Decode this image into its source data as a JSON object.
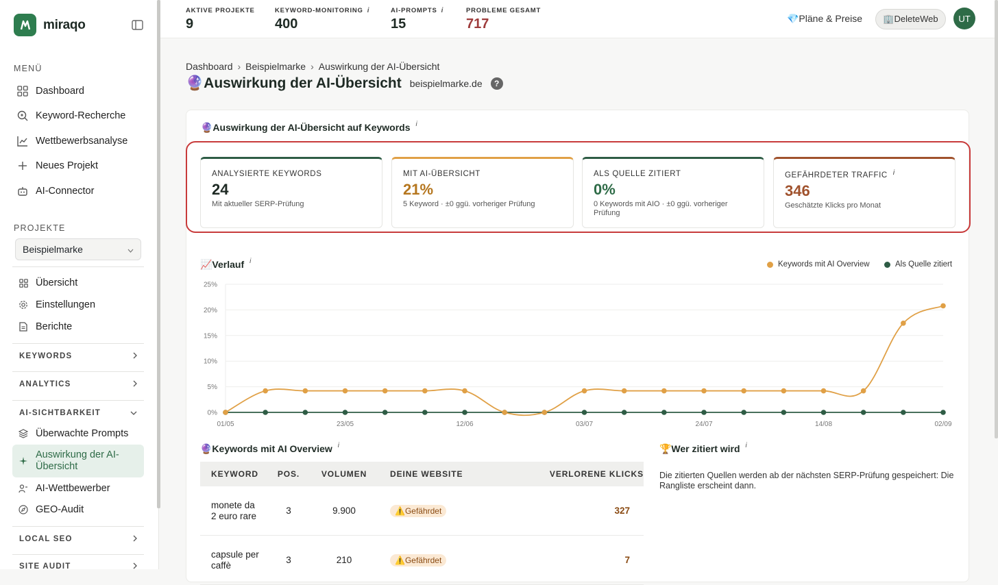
{
  "brand": {
    "name": "miraqo"
  },
  "sidebar": {
    "menu_label": "MENÜ",
    "menu": [
      {
        "label": "Dashboard",
        "icon": "grid-icon"
      },
      {
        "label": "Keyword-Recherche",
        "icon": "search-icon"
      },
      {
        "label": "Wettbewerbsanalyse",
        "icon": "chart-line-icon"
      },
      {
        "label": "Neues Projekt",
        "icon": "plus-icon"
      },
      {
        "label": "AI-Connector",
        "icon": "robot-icon"
      }
    ],
    "projects_label": "PROJEKTE",
    "project_select": "Beispielmarke",
    "project_items": [
      {
        "label": "Übersicht",
        "icon": "grid-icon"
      },
      {
        "label": "Einstellungen",
        "icon": "gear-icon"
      },
      {
        "label": "Berichte",
        "icon": "document-icon"
      }
    ],
    "groups": {
      "keywords": "KEYWORDS",
      "analytics": "ANALYTICS",
      "ai_visibility": "AI-SICHTBARKEIT",
      "local_seo": "LOCAL SEO",
      "site_audit": "SITE AUDIT"
    },
    "ai_items": [
      {
        "label": "Überwachte Prompts",
        "icon": "layers-icon"
      },
      {
        "label": "Auswirkung der AI-Übersicht",
        "icon": "sparkle-icon"
      },
      {
        "label": "AI-Wettbewerber",
        "icon": "users-icon"
      },
      {
        "label": "GEO-Audit",
        "icon": "compass-icon"
      }
    ]
  },
  "topbar": {
    "kpis": [
      {
        "label": "AKTIVE PROJEKTE",
        "value": "9"
      },
      {
        "label": "KEYWORD-MONITORING",
        "value": "400",
        "info": "i"
      },
      {
        "label": "AI-PROMPTS",
        "value": "15",
        "info": "i"
      },
      {
        "label": "PROBLEME GESAMT",
        "value": "717"
      }
    ],
    "plans_label": "💎Pläne & Preise",
    "workspace_label": "🏢DeleteWeb",
    "avatar_initials": "UT"
  },
  "breadcrumb": [
    "Dashboard",
    "Beispielmarke",
    "Auswirkung der AI-Übersicht"
  ],
  "page": {
    "emoji": "🔮",
    "title": "Auswirkung der AI-Übersicht",
    "domain": "beispielmarke.de",
    "help": "?"
  },
  "impact": {
    "title": "🔮Auswirkung der AI-Übersicht auf Keywords",
    "info": "i",
    "stats": [
      {
        "label": "ANALYSIERTE KEYWORDS",
        "value": "24",
        "sub": "Mit aktueller SERP-Prüfung",
        "color": "#2e5c45"
      },
      {
        "label": "MIT AI-ÜBERSICHT",
        "value": "21%",
        "sub": "5 Keyword · ±0  ggü. vorheriger Prüfung",
        "color": "#e0a046"
      },
      {
        "label": "ALS QUELLE ZITIERT",
        "value": "0%",
        "sub": "0 Keywords mit AIO · ±0  ggü. vorheriger Prüfung",
        "color": "#2e5c45"
      },
      {
        "label": "GEFÄHRDETER TRAFFIC",
        "value": "346",
        "sub": "Geschätzte Klicks pro Monat",
        "color": "#a0522d",
        "info": "i"
      }
    ]
  },
  "trend": {
    "title": "📈Verlauf",
    "info": "i",
    "legend": [
      {
        "name": "Keywords mit AI Overview",
        "color": "#e0a046"
      },
      {
        "name": "Als Quelle zitiert",
        "color": "#2e5c45"
      }
    ]
  },
  "chart_data": {
    "type": "line",
    "x_ticks": [
      "01/05",
      "23/05",
      "12/06",
      "03/07",
      "24/07",
      "14/08",
      "02/09"
    ],
    "y_ticks": [
      "0%",
      "5%",
      "10%",
      "15%",
      "20%",
      "25%"
    ],
    "ylim": [
      0,
      25
    ],
    "series": [
      {
        "name": "Keywords mit AI Overview",
        "color": "#e0a046",
        "values": [
          0,
          4.2,
          4.2,
          4.2,
          4.2,
          4.2,
          4.2,
          0,
          0,
          4.2,
          4.2,
          4.2,
          4.2,
          4.2,
          4.2,
          4.2,
          4.2,
          17.4,
          20.8
        ]
      },
      {
        "name": "Als Quelle zitiert",
        "color": "#2e5c45",
        "values": [
          0,
          0,
          0,
          0,
          0,
          0,
          0,
          0,
          0,
          0,
          0,
          0,
          0,
          0,
          0,
          0,
          0,
          0,
          0
        ]
      }
    ]
  },
  "keywords_aio": {
    "title": "🔮Keywords mit AI Overview",
    "info": "i",
    "columns": [
      "KEYWORD",
      "POS.",
      "VOLUMEN",
      "DEINE WEBSITE",
      "VERLORENE KLICKS"
    ],
    "rows": [
      {
        "keyword": "monete da 2 euro rare",
        "pos": "3",
        "volume": "9.900",
        "status": "⚠️Gefährdet",
        "lost": "327"
      },
      {
        "keyword": "capsule per caffè",
        "pos": "3",
        "volume": "210",
        "status": "⚠️Gefährdet",
        "lost": "7"
      }
    ]
  },
  "citations": {
    "title": "🏆Wer zitiert wird",
    "info": "i",
    "text": "Die zitierten Quellen werden ab der nächsten SERP-Prüfung gespeichert: Die Rangliste erscheint dann."
  }
}
